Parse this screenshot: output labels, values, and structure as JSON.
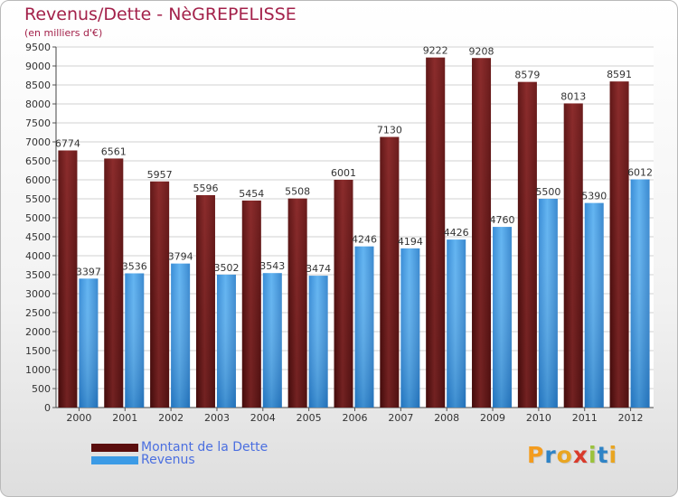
{
  "title": "Revenus/Dette - NèGREPELISSE",
  "subtitle": "(en milliers d'€)",
  "logo": {
    "text": "Proxiti",
    "letter_colors": [
      "#f39c1f",
      "#2e83c6",
      "#e9a521",
      "#d93a2b",
      "#9bc23c",
      "#2e83c6",
      "#e9a521"
    ]
  },
  "chart_data": {
    "type": "bar",
    "categories": [
      "2000",
      "2001",
      "2002",
      "2003",
      "2004",
      "2005",
      "2006",
      "2007",
      "2008",
      "2009",
      "2010",
      "2011",
      "2012"
    ],
    "series": [
      {
        "name": "Montant de la Dette",
        "color": "#7a1f1f",
        "values": [
          6774,
          6561,
          5957,
          5596,
          5454,
          5508,
          6001,
          7130,
          9222,
          9208,
          8579,
          8013,
          8591
        ]
      },
      {
        "name": "Revenus",
        "color": "#3c9be6",
        "values": [
          3397,
          3536,
          3794,
          3502,
          3543,
          3474,
          4246,
          4194,
          4426,
          4760,
          5500,
          5390,
          6012
        ]
      }
    ],
    "ylim": [
      0,
      9500
    ],
    "yticks": [
      0,
      500,
      1000,
      1500,
      2000,
      2500,
      3000,
      3500,
      4000,
      4500,
      5000,
      5500,
      6000,
      6500,
      7000,
      7500,
      8000,
      8500,
      9000,
      9500
    ],
    "grid": true,
    "legend": "bottom-left"
  }
}
